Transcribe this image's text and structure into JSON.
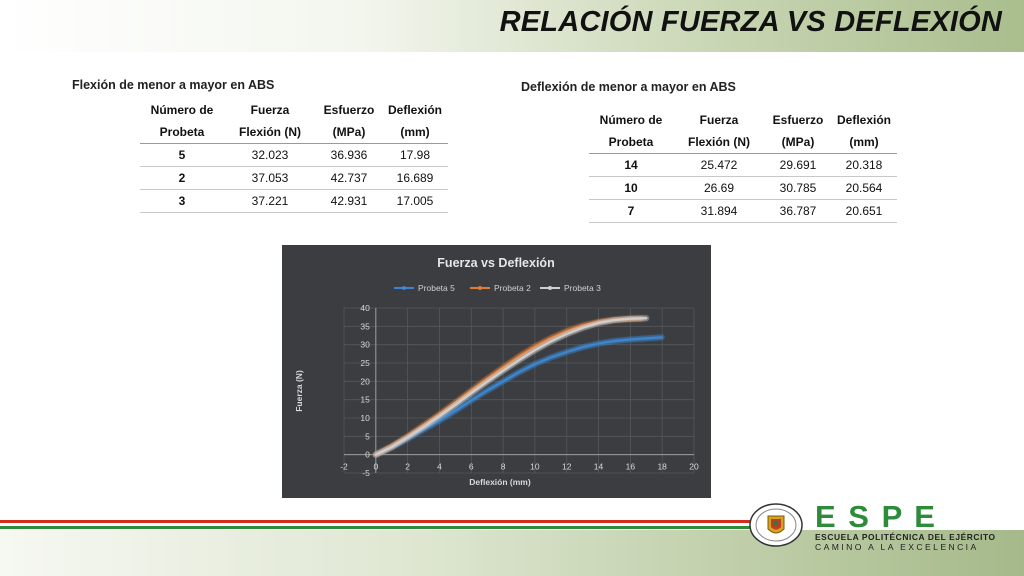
{
  "header": {
    "title": "RELACIÓN FUERZA VS DEFLEXIÓN"
  },
  "table_left": {
    "caption": "Flexión de menor a mayor en ABS",
    "headers": [
      [
        "Número de",
        "Probeta"
      ],
      [
        "Fuerza",
        "Flexión (N)"
      ],
      [
        "Esfuerzo",
        "(MPa)"
      ],
      [
        "Deflexión",
        "(mm)"
      ]
    ],
    "rows": [
      [
        "5",
        "32.023",
        "36.936",
        "17.98"
      ],
      [
        "2",
        "37.053",
        "42.737",
        "16.689"
      ],
      [
        "3",
        "37.221",
        "42.931",
        "17.005"
      ]
    ]
  },
  "table_right": {
    "caption": "Deflexión de menor a mayor en ABS",
    "headers": [
      [
        "Número de",
        "Probeta"
      ],
      [
        "Fuerza",
        "Flexión (N)"
      ],
      [
        "Esfuerzo",
        "(MPa)"
      ],
      [
        "Deflexión",
        "(mm)"
      ]
    ],
    "rows": [
      [
        "14",
        "25.472",
        "29.691",
        "20.318"
      ],
      [
        "10",
        "26.69",
        "30.785",
        "20.564"
      ],
      [
        "7",
        "31.894",
        "36.787",
        "20.651"
      ]
    ]
  },
  "chart_data": {
    "type": "line",
    "title": "Fuerza vs Deflexión",
    "xlabel": "Deflexión (mm)",
    "ylabel": "Fuerza (N)",
    "xlim": [
      -2,
      20
    ],
    "ylim": [
      -5,
      40
    ],
    "x_ticks": [
      -2,
      0,
      2,
      4,
      6,
      8,
      10,
      12,
      14,
      16,
      18,
      20
    ],
    "y_ticks": [
      -5,
      0,
      5,
      10,
      15,
      20,
      25,
      30,
      35,
      40
    ],
    "grid": true,
    "legend_position": "top",
    "series": [
      {
        "name": "Probeta 5",
        "color": "#3d86cf",
        "points": [
          [
            0,
            0
          ],
          [
            1,
            2
          ],
          [
            2,
            4.3
          ],
          [
            3,
            6.8
          ],
          [
            4,
            9.3
          ],
          [
            5,
            12
          ],
          [
            6,
            14.8
          ],
          [
            7,
            17.5
          ],
          [
            8,
            20
          ],
          [
            9,
            22.5
          ],
          [
            10,
            24.7
          ],
          [
            11,
            26.5
          ],
          [
            12,
            28
          ],
          [
            13,
            29.3
          ],
          [
            14,
            30.3
          ],
          [
            15,
            31
          ],
          [
            16,
            31.4
          ],
          [
            17,
            31.7
          ],
          [
            17.98,
            32.02
          ]
        ]
      },
      {
        "name": "Probeta 2",
        "color": "#e27b35",
        "points": [
          [
            0,
            0
          ],
          [
            1,
            2.3
          ],
          [
            2,
            5
          ],
          [
            3,
            8
          ],
          [
            4,
            11
          ],
          [
            5,
            14.2
          ],
          [
            6,
            17.5
          ],
          [
            7,
            20.7
          ],
          [
            8,
            23.8
          ],
          [
            9,
            26.8
          ],
          [
            10,
            29.5
          ],
          [
            11,
            31.8
          ],
          [
            12,
            33.7
          ],
          [
            13,
            35.2
          ],
          [
            14,
            36.2
          ],
          [
            15,
            36.8
          ],
          [
            16,
            37
          ],
          [
            16.69,
            37.05
          ]
        ]
      },
      {
        "name": "Probeta 3",
        "color": "#cfcfcf",
        "points": [
          [
            0,
            0
          ],
          [
            1,
            2.1
          ],
          [
            2,
            4.7
          ],
          [
            3,
            7.5
          ],
          [
            4,
            10.5
          ],
          [
            5,
            13.6
          ],
          [
            6,
            16.8
          ],
          [
            7,
            19.9
          ],
          [
            8,
            22.9
          ],
          [
            9,
            25.8
          ],
          [
            10,
            28.5
          ],
          [
            11,
            30.9
          ],
          [
            12,
            32.9
          ],
          [
            13,
            34.6
          ],
          [
            14,
            35.9
          ],
          [
            15,
            36.7
          ],
          [
            16,
            37.1
          ],
          [
            17.0,
            37.22
          ]
        ]
      }
    ]
  },
  "footer": {
    "brand": "E S P E",
    "line1": "ESCUELA POLITÉCNICA DEL EJÉRCITO",
    "line2": "CAMINO A LA EXCELENCIA"
  }
}
